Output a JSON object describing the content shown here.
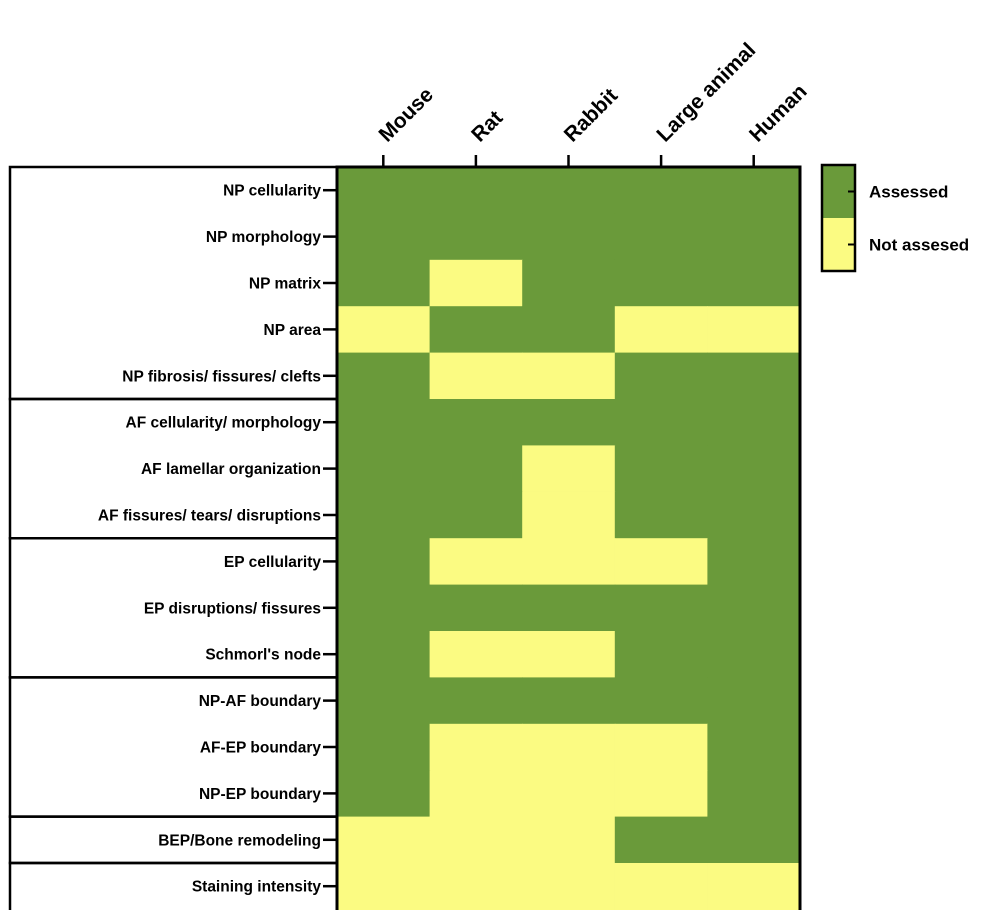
{
  "colors": {
    "assessed": "#6a9a3a",
    "not_assessed": "#fbfb82",
    "frame": "#000000"
  },
  "chart_data": {
    "type": "heatmap",
    "columns": [
      "Mouse",
      "Rat",
      "Rabbit",
      "Large animal",
      "Human"
    ],
    "rows": [
      "NP cellularity",
      "NP morphology",
      "NP matrix",
      "NP area",
      "NP fibrosis/ fissures/ clefts",
      "AF  cellularity/ morphology",
      "AF lamellar organization",
      "AF fissures/ tears/ disruptions",
      "EP cellularity",
      "EP disruptions/ fissures",
      "Schmorl's node",
      "NP-AF boundary",
      "AF-EP boundary",
      "NP-EP boundary",
      "BEP/Bone remodeling",
      "Staining intensity"
    ],
    "values": [
      [
        1,
        1,
        1,
        1,
        1
      ],
      [
        1,
        1,
        1,
        1,
        1
      ],
      [
        1,
        0,
        1,
        1,
        1
      ],
      [
        0,
        1,
        1,
        0,
        0
      ],
      [
        1,
        0,
        0,
        1,
        1
      ],
      [
        1,
        1,
        1,
        1,
        1
      ],
      [
        1,
        1,
        0,
        1,
        1
      ],
      [
        1,
        1,
        0,
        1,
        1
      ],
      [
        1,
        0,
        0,
        0,
        1
      ],
      [
        1,
        1,
        1,
        1,
        1
      ],
      [
        1,
        0,
        0,
        1,
        1
      ],
      [
        1,
        1,
        1,
        1,
        1
      ],
      [
        1,
        0,
        0,
        0,
        1
      ],
      [
        1,
        0,
        0,
        0,
        1
      ],
      [
        0,
        0,
        0,
        1,
        1
      ],
      [
        0,
        0,
        0,
        0,
        0
      ]
    ],
    "value_legend": {
      "1": "Assessed",
      "0": "Not assesed"
    },
    "row_groups": [
      5,
      3,
      3,
      3,
      1,
      1
    ],
    "legend": {
      "entries": [
        {
          "label": "Assessed",
          "value": 1
        },
        {
          "label": "Not assesed",
          "value": 0
        }
      ],
      "placement": "right"
    }
  }
}
